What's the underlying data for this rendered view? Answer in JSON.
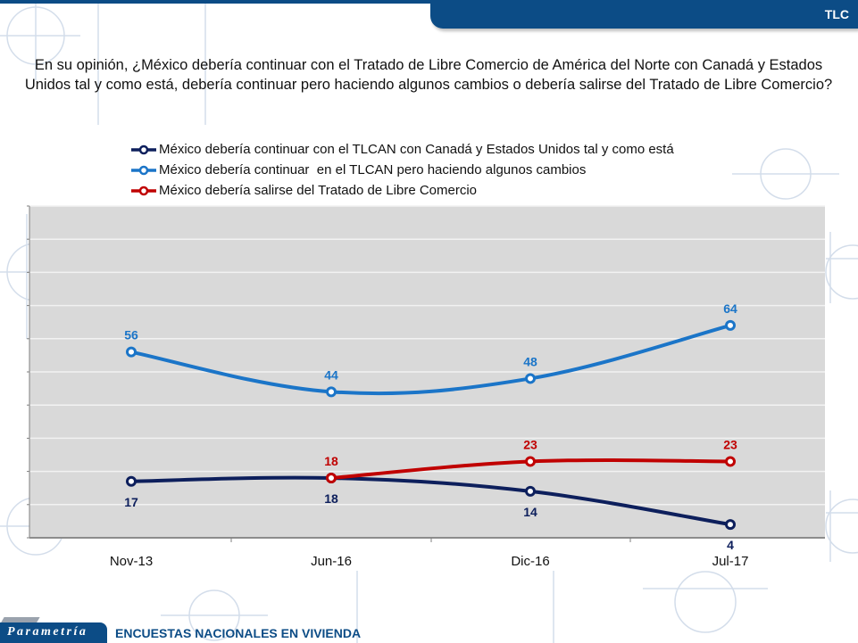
{
  "header": {
    "tab_label": "TLC"
  },
  "question": "En su opinión, ¿México debería continuar con el Tratado de Libre Comercio de América del Norte con Canadá y Estados Unidos tal y como está, debería continuar pero haciendo algunos cambios o debería salirse del Tratado de Libre Comercio?",
  "footer": {
    "brand": "Parametría",
    "subtitle": "ENCUESTAS NACIONALES EN VIVIENDA"
  },
  "colors": {
    "brand_blue": "#0c4c86",
    "series_dark": "#0d1f5c",
    "series_light": "#1b75c8",
    "series_red": "#c00000",
    "plot_bg": "#d9d9d9"
  },
  "chart_data": {
    "type": "line",
    "title": "",
    "xlabel": "",
    "ylabel": "",
    "ylim": [
      0,
      100
    ],
    "grid": true,
    "gridline_step": 10,
    "legend_position": "top",
    "categories": [
      "Nov-13",
      "Jun-16",
      "Dic-16",
      "Jul-17"
    ],
    "series": [
      {
        "name": "México debería continuar con el TLCAN con Canadá y Estados Unidos tal y como está",
        "color": "#0d1f5c",
        "values": [
          17,
          18,
          14,
          4
        ],
        "label_position": "below"
      },
      {
        "name": "México debería continuar  en el TLCAN pero haciendo algunos cambios",
        "color": "#1b75c8",
        "values": [
          56,
          44,
          48,
          64
        ],
        "label_position": "above"
      },
      {
        "name": "México debería salirse del Tratado de Libre Comercio",
        "color": "#c00000",
        "values": [
          null,
          18,
          23,
          23
        ],
        "label_position": "above"
      }
    ]
  }
}
